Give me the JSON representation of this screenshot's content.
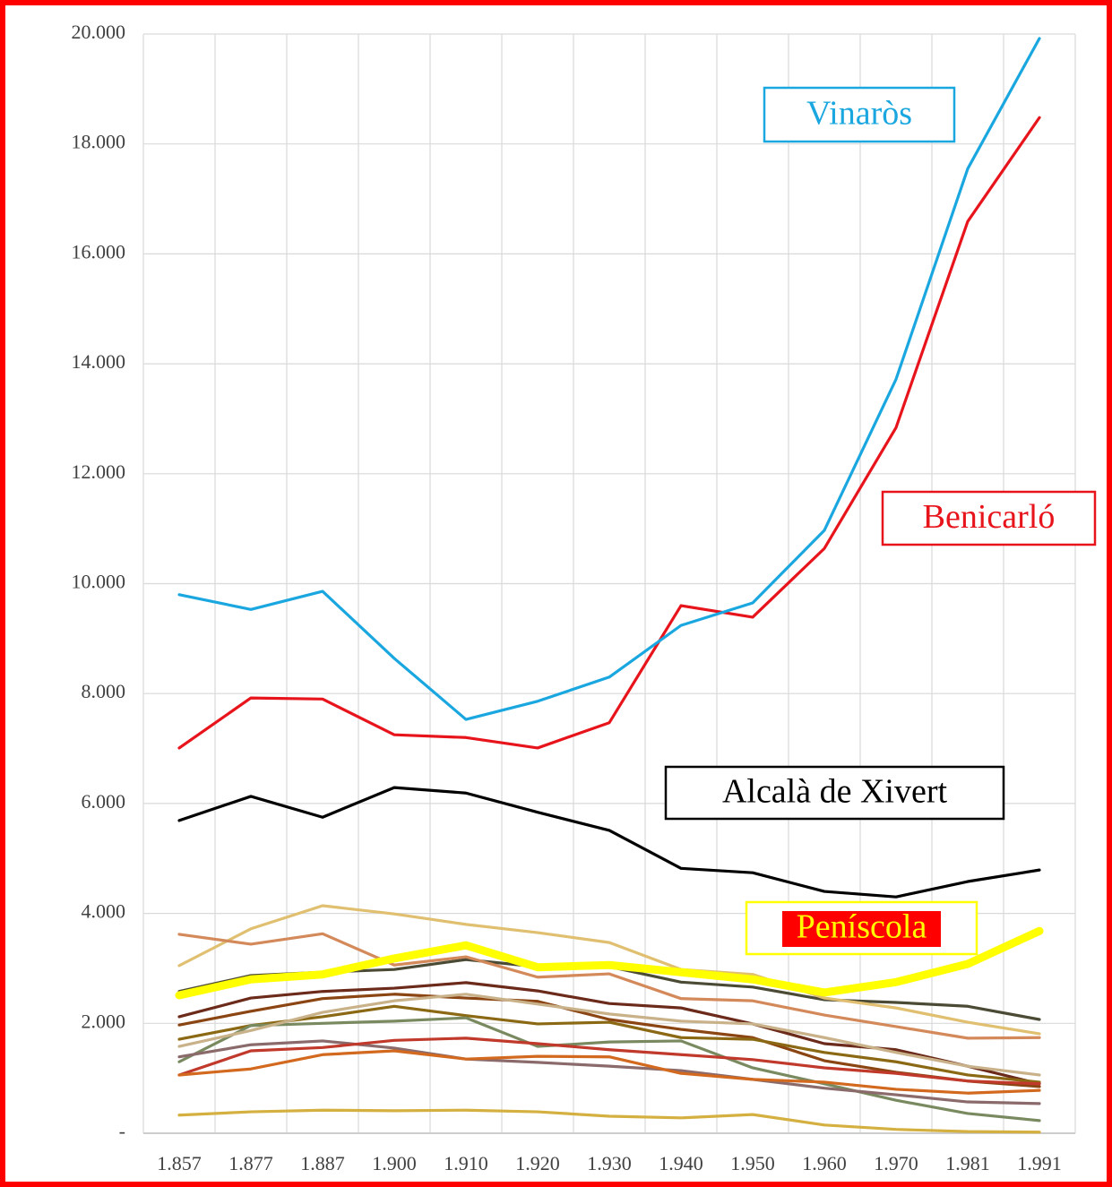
{
  "chart_data": {
    "type": "line",
    "categories": [
      "1.857",
      "1.877",
      "1.887",
      "1.900",
      "1.910",
      "1.920",
      "1.930",
      "1.940",
      "1.950",
      "1.960",
      "1.970",
      "1.981",
      "1.991"
    ],
    "ylim": [
      0,
      20000
    ],
    "yticks": [
      {
        "value": 0,
        "label": "-"
      },
      {
        "value": 2000,
        "label": "2.000"
      },
      {
        "value": 4000,
        "label": "4.000"
      },
      {
        "value": 6000,
        "label": "6.000"
      },
      {
        "value": 8000,
        "label": "8.000"
      },
      {
        "value": 10000,
        "label": "10.000"
      },
      {
        "value": 12000,
        "label": "12.000"
      },
      {
        "value": 14000,
        "label": "14.000"
      },
      {
        "value": 16000,
        "label": "16.000"
      },
      {
        "value": 18000,
        "label": "18.000"
      },
      {
        "value": 20000,
        "label": "20.000"
      }
    ],
    "grid": true,
    "series": [
      {
        "name": "Vinaròs",
        "color": "#1aa7e0",
        "values": [
          9800,
          9530,
          9860,
          8640,
          7530,
          7860,
          8300,
          9240,
          9650,
          10970,
          13720,
          17550,
          19920
        ]
      },
      {
        "name": "Benicarló",
        "color": "#e8141c",
        "values": [
          7010,
          7920,
          7900,
          7250,
          7200,
          7010,
          7470,
          9600,
          9390,
          10640,
          12840,
          16590,
          18480
        ]
      },
      {
        "name": "Alcalà de Xivert",
        "color": "#000000",
        "values": [
          5690,
          6130,
          5750,
          6290,
          6190,
          5840,
          5510,
          4820,
          4740,
          4400,
          4300,
          4580,
          4790
        ]
      },
      {
        "name": "Peníscola",
        "color": "#ffff00",
        "values": [
          2510,
          2800,
          2890,
          3180,
          3420,
          3020,
          3060,
          2930,
          2800,
          2560,
          2750,
          3080,
          3680
        ]
      },
      {
        "color": "#4b4b35",
        "values": [
          2580,
          2870,
          2930,
          2980,
          3160,
          3030,
          3030,
          2750,
          2660,
          2430,
          2380,
          2310,
          2070
        ]
      },
      {
        "color": "#e0c070",
        "values": [
          3050,
          3720,
          4140,
          3990,
          3800,
          3650,
          3470,
          2980,
          2890,
          2460,
          2280,
          2020,
          1810
        ]
      },
      {
        "color": "#d4895a",
        "values": [
          3620,
          3440,
          3630,
          3060,
          3210,
          2840,
          2900,
          2450,
          2410,
          2150,
          1940,
          1730,
          1740
        ]
      },
      {
        "color": "#6b2a1a",
        "values": [
          2120,
          2460,
          2580,
          2640,
          2740,
          2590,
          2360,
          2280,
          1990,
          1630,
          1520,
          1220,
          900
        ]
      },
      {
        "color": "#8b4513",
        "values": [
          1970,
          2220,
          2450,
          2530,
          2460,
          2400,
          2070,
          1890,
          1740,
          1320,
          1110,
          950,
          850
        ]
      },
      {
        "color": "#8b6914",
        "values": [
          1710,
          1960,
          2120,
          2310,
          2140,
          1990,
          2020,
          1740,
          1710,
          1470,
          1300,
          1060,
          930
        ]
      },
      {
        "color": "#7a8a60",
        "values": [
          1300,
          1960,
          2000,
          2040,
          2100,
          1580,
          1660,
          1680,
          1190,
          900,
          600,
          360,
          230
        ]
      },
      {
        "color": "#8a6a6a",
        "values": [
          1390,
          1610,
          1680,
          1550,
          1350,
          1290,
          1220,
          1140,
          980,
          820,
          700,
          570,
          540
        ]
      },
      {
        "color": "#c0392b",
        "values": [
          1060,
          1500,
          1560,
          1690,
          1730,
          1630,
          1520,
          1430,
          1340,
          1190,
          1090,
          950,
          900
        ]
      },
      {
        "color": "#d2691e",
        "values": [
          1060,
          1170,
          1430,
          1500,
          1350,
          1400,
          1390,
          1090,
          980,
          930,
          800,
          730,
          780
        ]
      },
      {
        "color": "#c9b28a",
        "values": [
          1580,
          1870,
          2200,
          2410,
          2530,
          2350,
          2170,
          2040,
          1990,
          1740,
          1470,
          1220,
          1060
        ]
      },
      {
        "color": "#d4b040",
        "values": [
          330,
          390,
          420,
          410,
          420,
          390,
          310,
          280,
          340,
          150,
          70,
          30,
          20
        ]
      }
    ]
  }
}
